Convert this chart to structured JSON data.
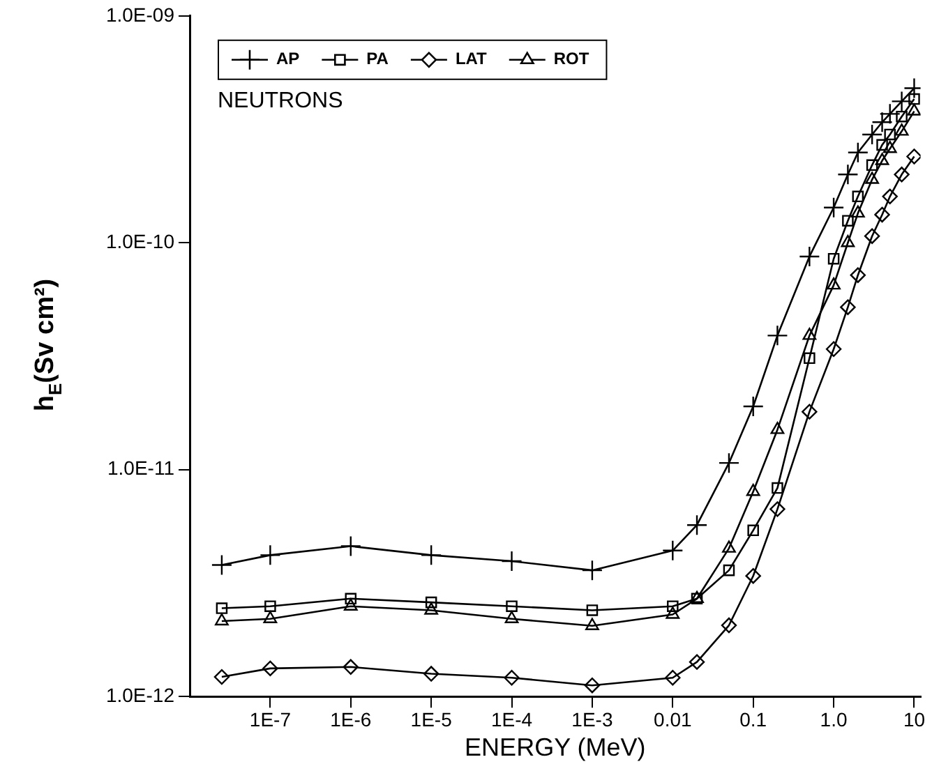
{
  "chart_data": {
    "type": "line",
    "log": "xy",
    "xlabel": "ENERGY (MeV)",
    "ylabel": "h$_{E}$(Sv cm²)",
    "annotations": [
      "NEUTRONS"
    ],
    "x": [
      2.5e-08,
      1e-07,
      1e-06,
      1e-05,
      0.0001,
      0.001,
      0.01,
      0.02,
      0.05,
      0.1,
      0.2,
      0.5,
      1,
      1.5,
      2,
      3,
      4,
      5,
      7,
      10
    ],
    "xlim": [
      1e-08,
      12
    ],
    "xticks": [
      {
        "value": 1e-07,
        "label": "1E-7"
      },
      {
        "value": 1e-06,
        "label": "1E-6"
      },
      {
        "value": 1e-05,
        "label": "1E-5"
      },
      {
        "value": 0.0001,
        "label": "1E-4"
      },
      {
        "value": 0.001,
        "label": "1E-3"
      },
      {
        "value": 0.01,
        "label": "0.01"
      },
      {
        "value": 0.1,
        "label": "0.1"
      },
      {
        "value": 1,
        "label": "1.0"
      },
      {
        "value": 10,
        "label": "10"
      }
    ],
    "ylim": [
      1e-12,
      1e-09
    ],
    "yticks": [
      {
        "value": 1e-12,
        "label": "1.0E-12"
      },
      {
        "value": 1e-11,
        "label": "1.0E-11"
      },
      {
        "value": 1e-10,
        "label": "1.0E-10"
      },
      {
        "value": 1e-09,
        "label": "1.0E-09"
      }
    ],
    "grid": false,
    "legend": "top left",
    "line_style": "solid",
    "series": [
      {
        "name": "AP",
        "color": "#000000",
        "marker": "cross",
        "values": [
          3.8e-12,
          4.2e-12,
          4.6e-12,
          4.2e-12,
          3.95e-12,
          3.6e-12,
          4.4e-12,
          5.7e-12,
          1.07e-11,
          1.9e-11,
          3.9e-11,
          8.7e-11,
          1.43e-10,
          2e-10,
          2.5e-10,
          3e-10,
          3.4e-10,
          3.7e-10,
          4.2e-10,
          4.8e-10
        ]
      },
      {
        "name": "PA",
        "color": "#000000",
        "marker": "square",
        "values": [
          2.45e-12,
          2.5e-12,
          2.7e-12,
          2.6e-12,
          2.5e-12,
          2.4e-12,
          2.5e-12,
          2.7e-12,
          3.6e-12,
          5.4e-12,
          8.3e-12,
          3.1e-11,
          8.5e-11,
          1.25e-10,
          1.6e-10,
          2.2e-10,
          2.7e-10,
          3e-10,
          3.6e-10,
          4.3e-10
        ]
      },
      {
        "name": "LAT",
        "color": "#000000",
        "marker": "diamond",
        "values": [
          1.22e-12,
          1.33e-12,
          1.35e-12,
          1.26e-12,
          1.21e-12,
          1.12e-12,
          1.21e-12,
          1.42e-12,
          2.06e-12,
          3.4e-12,
          6.7e-12,
          1.8e-11,
          3.4e-11,
          5.2e-11,
          7.2e-11,
          1.07e-10,
          1.33e-10,
          1.6e-10,
          2e-10,
          2.4e-10
        ]
      },
      {
        "name": "ROT",
        "color": "#000000",
        "marker": "triangle",
        "values": [
          2.15e-12,
          2.2e-12,
          2.5e-12,
          2.4e-12,
          2.2e-12,
          2.05e-12,
          2.3e-12,
          2.7e-12,
          4.5e-12,
          8e-12,
          1.5e-11,
          3.9e-11,
          6.5e-11,
          1e-10,
          1.35e-10,
          1.9e-10,
          2.3e-10,
          2.6e-10,
          3.1e-10,
          3.8e-10
        ]
      }
    ]
  }
}
